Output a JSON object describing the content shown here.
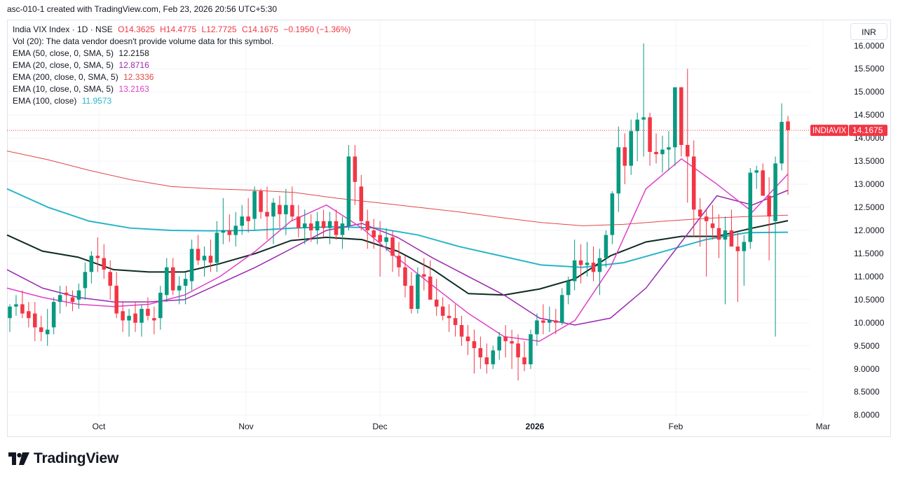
{
  "caption": "asc-010-1 created with TradingView.com, Feb 23, 2026 20:56 UTC+5:30",
  "legend": {
    "symbol": "India VIX Index · 1D · NSE",
    "o": "O14.3625",
    "h": "H14.4775",
    "l": "L12.7725",
    "c": "C14.1675",
    "chg": "−0.1950 (−1.36%)",
    "vol": "Vol (20): The data vendor doesn't provide volume data for this symbol.",
    "ema50_label": "EMA (50, close, 0, SMA, 5)",
    "ema50_val": "12.2158",
    "ema20_label": "EMA (20, close, 0, SMA, 5)",
    "ema20_val": "12.8716",
    "ema200_label": "EMA (200, close, 0, SMA, 5)",
    "ema200_val": "12.3336",
    "ema10_label": "EMA (10, close, 0, SMA, 5)",
    "ema10_val": "13.2163",
    "ema100_label": "EMA (100, close)",
    "ema100_val": "11.9573"
  },
  "currency": "INR",
  "price_tag": {
    "symbol": "INDIAVIX",
    "value": "14.1675"
  },
  "branding": "TradingView",
  "colors": {
    "up": "#089981",
    "down": "#f23645",
    "ema50": "#0d2b22",
    "ema20": "#9c27b0",
    "ema200": "#e04848",
    "ema10": "#e040c8",
    "ema100": "#26b5c8"
  },
  "chart_data": {
    "type": "candlestick",
    "y_axis_labels": [
      "16.0000",
      "15.5000",
      "15.0000",
      "14.5000",
      "14.0000",
      "13.5000",
      "13.0000",
      "12.5000",
      "12.0000",
      "11.5000",
      "11.0000",
      "10.5000",
      "10.0000",
      "9.5000",
      "9.0000",
      "8.5000",
      "8.0000"
    ],
    "x_axis_labels": [
      "Oct",
      "Nov",
      "Dec",
      "2026",
      "Feb",
      "Mar"
    ],
    "ylim": [
      7.95,
      16.55
    ],
    "last_close": 14.1675,
    "candles": [
      [
        10.1,
        10.4,
        9.8,
        10.35
      ],
      [
        10.35,
        10.6,
        10.15,
        10.4
      ],
      [
        10.4,
        10.7,
        10.1,
        10.2
      ],
      [
        10.25,
        10.45,
        9.9,
        10.1
      ],
      [
        10.2,
        10.45,
        9.6,
        9.9
      ],
      [
        9.9,
        10.15,
        9.6,
        9.8
      ],
      [
        9.75,
        10.3,
        9.5,
        9.85
      ],
      [
        9.9,
        10.55,
        9.75,
        10.45
      ],
      [
        10.45,
        10.8,
        10.2,
        10.6
      ],
      [
        10.65,
        10.8,
        10.35,
        10.6
      ],
      [
        10.55,
        10.7,
        10.25,
        10.45
      ],
      [
        10.5,
        10.85,
        10.3,
        10.7
      ],
      [
        10.75,
        11.3,
        10.5,
        11.1
      ],
      [
        11.1,
        11.55,
        10.85,
        11.45
      ],
      [
        11.45,
        11.85,
        11.1,
        11.4
      ],
      [
        11.4,
        11.7,
        10.95,
        11.15
      ],
      [
        11.1,
        11.35,
        10.5,
        10.8
      ],
      [
        10.8,
        11.1,
        10.1,
        10.2
      ],
      [
        10.25,
        10.45,
        9.8,
        10.05
      ],
      [
        10.05,
        10.3,
        9.7,
        10.15
      ],
      [
        10.2,
        10.45,
        9.8,
        10.0
      ],
      [
        10.0,
        10.4,
        9.7,
        10.3
      ],
      [
        10.3,
        10.55,
        10.05,
        10.15
      ],
      [
        10.1,
        10.35,
        9.75,
        10.05
      ],
      [
        10.1,
        10.8,
        9.85,
        10.65
      ],
      [
        10.6,
        11.4,
        10.45,
        11.2
      ],
      [
        11.2,
        11.4,
        10.6,
        10.7
      ],
      [
        10.7,
        11.0,
        10.4,
        10.8
      ],
      [
        10.8,
        11.1,
        10.4,
        10.95
      ],
      [
        10.9,
        11.8,
        10.7,
        11.6
      ],
      [
        11.6,
        11.9,
        11.25,
        11.35
      ],
      [
        11.35,
        11.65,
        11.0,
        11.45
      ],
      [
        11.45,
        11.8,
        11.1,
        11.3
      ],
      [
        11.3,
        12.2,
        11.1,
        11.95
      ],
      [
        11.95,
        12.7,
        11.7,
        12.0
      ],
      [
        12.0,
        12.35,
        11.75,
        11.9
      ],
      [
        11.9,
        12.4,
        11.65,
        12.1
      ],
      [
        12.1,
        12.55,
        11.9,
        12.3
      ],
      [
        12.3,
        12.7,
        11.95,
        12.2
      ],
      [
        12.25,
        12.95,
        12.0,
        12.85
      ],
      [
        12.85,
        12.9,
        12.25,
        12.4
      ],
      [
        12.4,
        12.95,
        11.8,
        12.3
      ],
      [
        12.3,
        12.7,
        11.7,
        12.6
      ],
      [
        12.55,
        12.75,
        12.05,
        12.35
      ],
      [
        12.35,
        12.9,
        11.9,
        12.55
      ],
      [
        12.55,
        12.95,
        12.2,
        12.3
      ],
      [
        12.3,
        12.55,
        11.85,
        12.05
      ],
      [
        12.05,
        12.45,
        11.7,
        12.15
      ],
      [
        12.15,
        12.35,
        11.75,
        12.0
      ],
      [
        12.0,
        12.4,
        11.7,
        12.2
      ],
      [
        12.2,
        12.45,
        11.85,
        12.05
      ],
      [
        12.05,
        12.4,
        11.7,
        12.2
      ],
      [
        12.2,
        12.45,
        11.8,
        11.9
      ],
      [
        11.9,
        12.3,
        11.6,
        12.15
      ],
      [
        12.1,
        13.85,
        12.0,
        13.6
      ],
      [
        13.6,
        13.85,
        12.55,
        13.05
      ],
      [
        12.95,
        13.2,
        12.0,
        12.2
      ],
      [
        12.2,
        12.45,
        11.6,
        12.0
      ],
      [
        12.0,
        12.25,
        11.6,
        11.85
      ],
      [
        11.9,
        12.2,
        11.0,
        11.75
      ],
      [
        11.75,
        12.05,
        11.55,
        11.85
      ],
      [
        11.85,
        12.0,
        11.1,
        11.45
      ],
      [
        11.45,
        11.75,
        11.0,
        11.2
      ],
      [
        11.2,
        11.45,
        10.55,
        10.8
      ],
      [
        10.8,
        11.1,
        10.2,
        10.3
      ],
      [
        10.3,
        11.2,
        10.2,
        11.05
      ],
      [
        11.05,
        11.4,
        10.7,
        11.0
      ],
      [
        11.0,
        11.35,
        10.55,
        10.5
      ],
      [
        10.5,
        10.95,
        10.15,
        10.35
      ],
      [
        10.35,
        10.55,
        10.05,
        10.15
      ],
      [
        10.15,
        10.4,
        9.8,
        10.1
      ],
      [
        10.1,
        10.4,
        9.7,
        9.95
      ],
      [
        9.95,
        10.15,
        9.5,
        9.7
      ],
      [
        9.7,
        9.95,
        9.3,
        9.6
      ],
      [
        9.6,
        9.85,
        8.9,
        9.45
      ],
      [
        9.45,
        9.7,
        9.0,
        9.25
      ],
      [
        9.25,
        9.55,
        8.9,
        9.1
      ],
      [
        9.1,
        9.5,
        9.0,
        9.4
      ],
      [
        9.4,
        9.8,
        9.2,
        9.7
      ],
      [
        9.7,
        9.95,
        9.25,
        9.6
      ],
      [
        9.6,
        9.85,
        9.0,
        9.55
      ],
      [
        9.55,
        9.75,
        8.75,
        9.25
      ],
      [
        9.25,
        9.6,
        8.95,
        9.1
      ],
      [
        9.1,
        9.85,
        9.0,
        9.75
      ],
      [
        9.75,
        10.2,
        9.5,
        10.05
      ],
      [
        10.05,
        10.4,
        9.75,
        10.0
      ],
      [
        10.0,
        10.35,
        9.8,
        10.05
      ],
      [
        10.05,
        10.3,
        9.75,
        10.0
      ],
      [
        10.0,
        10.75,
        9.95,
        10.6
      ],
      [
        10.6,
        11.0,
        10.4,
        10.9
      ],
      [
        10.9,
        11.8,
        10.7,
        11.35
      ],
      [
        11.35,
        11.7,
        10.85,
        11.25
      ],
      [
        11.25,
        11.75,
        11.0,
        11.3
      ],
      [
        11.3,
        11.65,
        10.9,
        11.1
      ],
      [
        11.1,
        11.6,
        10.6,
        11.4
      ],
      [
        11.4,
        12.0,
        11.2,
        11.9
      ],
      [
        11.9,
        12.85,
        11.7,
        12.8
      ],
      [
        12.8,
        14.25,
        12.4,
        13.8
      ],
      [
        13.8,
        14.1,
        13.0,
        13.4
      ],
      [
        13.4,
        14.4,
        13.2,
        14.15
      ],
      [
        14.15,
        14.55,
        13.5,
        14.4
      ],
      [
        14.4,
        16.05,
        13.6,
        14.45
      ],
      [
        14.45,
        14.55,
        13.4,
        13.7
      ],
      [
        13.7,
        14.1,
        13.45,
        13.65
      ],
      [
        13.65,
        14.05,
        13.25,
        13.75
      ],
      [
        13.75,
        14.15,
        13.3,
        13.8
      ],
      [
        13.8,
        15.05,
        13.4,
        15.1
      ],
      [
        15.1,
        15.1,
        13.6,
        13.85
      ],
      [
        13.85,
        15.5,
        12.6,
        13.6
      ],
      [
        13.6,
        13.95,
        11.85,
        12.45
      ],
      [
        12.45,
        12.7,
        11.65,
        12.3
      ],
      [
        12.3,
        12.45,
        11.0,
        12.2
      ],
      [
        12.15,
        12.55,
        11.8,
        12.05
      ],
      [
        12.05,
        12.35,
        11.4,
        11.8
      ],
      [
        11.8,
        12.3,
        10.4,
        12.0
      ],
      [
        12.0,
        12.45,
        11.7,
        11.65
      ],
      [
        11.65,
        11.95,
        10.45,
        11.55
      ],
      [
        11.55,
        11.9,
        10.8,
        11.75
      ],
      [
        11.75,
        13.35,
        11.6,
        13.25
      ],
      [
        13.25,
        13.4,
        12.9,
        13.3
      ],
      [
        13.3,
        13.45,
        12.8,
        12.75
      ],
      [
        12.75,
        13.15,
        11.35,
        12.3
      ],
      [
        12.2,
        13.6,
        9.7,
        13.45
      ],
      [
        13.45,
        14.75,
        13.3,
        14.35
      ],
      [
        14.36,
        14.48,
        12.77,
        14.17
      ]
    ],
    "ema50": [
      11.9,
      11.55,
      11.42,
      11.15,
      11.1,
      11.1,
      11.28,
      11.5,
      11.78,
      11.85,
      11.8,
      11.55,
      11.15,
      10.63,
      10.6,
      10.73,
      10.95,
      11.45,
      11.75,
      11.87,
      11.87,
      12.05,
      12.21
    ],
    "ema20": [
      11.15,
      10.75,
      10.55,
      10.45,
      10.45,
      10.5,
      10.85,
      11.2,
      11.6,
      12.0,
      12.15,
      11.85,
      11.4,
      11.0,
      10.6,
      10.1,
      9.95,
      10.1,
      10.75,
      11.75,
      12.75,
      12.55,
      12.87
    ],
    "ema200": [
      13.72,
      13.53,
      13.3,
      13.1,
      12.95,
      12.9,
      12.87,
      12.82,
      12.7,
      12.6,
      12.5,
      12.4,
      12.28,
      12.17,
      12.1,
      12.13,
      12.2,
      12.26,
      12.3,
      12.33
    ],
    "ema10": [
      10.75,
      10.55,
      10.4,
      10.35,
      10.4,
      10.6,
      11.0,
      11.55,
      12.2,
      12.55,
      12.05,
      11.4,
      10.8,
      10.2,
      9.7,
      9.6,
      10.05,
      11.2,
      12.9,
      13.55,
      13.0,
      12.4,
      13.22
    ],
    "ema100": [
      12.9,
      12.5,
      12.2,
      12.05,
      12.0,
      11.99,
      12.0,
      12.05,
      12.08,
      12.05,
      11.9,
      11.65,
      11.45,
      11.25,
      11.2,
      11.3,
      11.55,
      11.8,
      11.95,
      11.96
    ]
  }
}
